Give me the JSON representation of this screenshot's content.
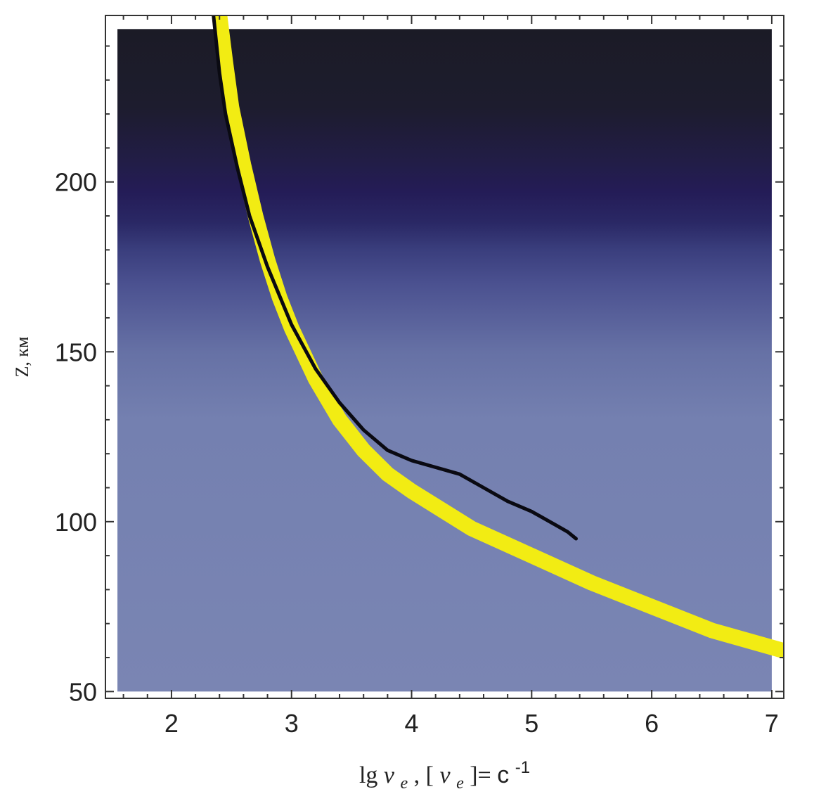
{
  "chart_data": {
    "type": "line",
    "title": "",
    "xlabel": {
      "prefix": "lg ",
      "nu": "ν",
      "e": "e",
      "middle": " , [",
      "close": "]=",
      "unit": "c",
      "exp": "-1"
    },
    "ylabel": "Z, км",
    "xlim": [
      1.45,
      7.1
    ],
    "ylim": [
      48,
      249
    ],
    "x_ticks": [
      2,
      3,
      4,
      5,
      6,
      7
    ],
    "y_ticks": [
      50,
      100,
      150,
      200
    ],
    "grid": false,
    "background": {
      "x_range": [
        1.55,
        7.0
      ],
      "y_range": [
        50,
        245
      ],
      "gradient_stops": [
        {
          "z": 245,
          "color": "#1b1b26"
        },
        {
          "z": 222,
          "color": "#1d1c2e"
        },
        {
          "z": 205,
          "color": "#221d48"
        },
        {
          "z": 197,
          "color": "#241c57"
        },
        {
          "z": 188,
          "color": "#2a2865"
        },
        {
          "z": 180,
          "color": "#3a3e7d"
        },
        {
          "z": 170,
          "color": "#4b5190"
        },
        {
          "z": 150,
          "color": "#6671a5"
        },
        {
          "z": 130,
          "color": "#7480b0"
        },
        {
          "z": 50,
          "color": "#7a85b3"
        }
      ]
    },
    "series": [
      {
        "color": "#f2ec13",
        "points": [
          [
            2.4,
            249
          ],
          [
            2.45,
            235
          ],
          [
            2.5,
            222
          ],
          [
            2.6,
            205
          ],
          [
            2.7,
            190
          ],
          [
            2.8,
            177
          ],
          [
            2.9,
            166
          ],
          [
            3.0,
            157
          ],
          [
            3.2,
            142
          ],
          [
            3.4,
            130
          ],
          [
            3.6,
            121
          ],
          [
            3.8,
            114
          ],
          [
            4.0,
            109
          ],
          [
            4.5,
            98
          ],
          [
            5.0,
            90
          ],
          [
            5.5,
            82
          ],
          [
            6.0,
            75
          ],
          [
            6.5,
            68
          ],
          [
            7.1,
            62
          ]
        ]
      },
      {
        "color": "#0a0a12",
        "points": [
          [
            2.35,
            249
          ],
          [
            2.4,
            232
          ],
          [
            2.45,
            220
          ],
          [
            2.55,
            204
          ],
          [
            2.65,
            190
          ],
          [
            2.8,
            175
          ],
          [
            3.0,
            158
          ],
          [
            3.2,
            145
          ],
          [
            3.4,
            135
          ],
          [
            3.6,
            127
          ],
          [
            3.8,
            121
          ],
          [
            4.0,
            118
          ],
          [
            4.2,
            116
          ],
          [
            4.4,
            114
          ],
          [
            4.6,
            110
          ],
          [
            4.8,
            106
          ],
          [
            5.0,
            103
          ],
          [
            5.2,
            99
          ],
          [
            5.3,
            97
          ],
          [
            5.37,
            95
          ]
        ]
      }
    ]
  }
}
